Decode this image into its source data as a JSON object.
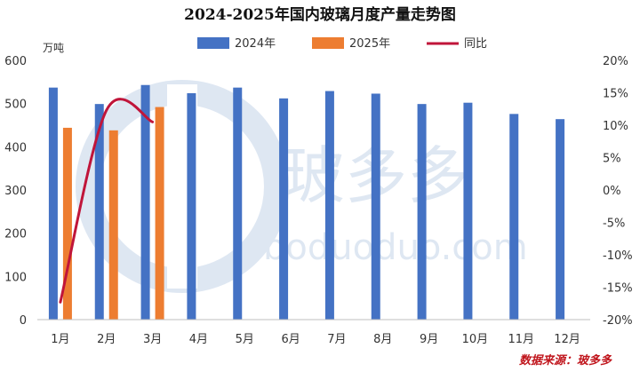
{
  "chart_data": {
    "type": "bar",
    "title": "2024-2025年国内玻璃月度产量走势图",
    "y_unit_label": "万吨",
    "categories": [
      "1月",
      "2月",
      "3月",
      "4月",
      "5月",
      "6月",
      "7月",
      "8月",
      "9月",
      "10月",
      "11月",
      "12月"
    ],
    "series": [
      {
        "name": "2024年",
        "type": "bar",
        "axis": "left",
        "color": "#4472c4",
        "values": [
          537,
          499,
          543,
          524,
          537,
          512,
          529,
          523,
          499,
          502,
          476,
          464
        ]
      },
      {
        "name": "2025年",
        "type": "bar",
        "axis": "left",
        "color": "#ed7d31",
        "values": [
          444,
          438,
          492,
          null,
          null,
          null,
          null,
          null,
          null,
          null,
          null,
          null
        ]
      },
      {
        "name": "同比",
        "type": "line",
        "axis": "right",
        "color": "#c0153a",
        "values": [
          -17.3,
          12.3,
          10.5,
          null,
          null,
          null,
          null,
          null,
          null,
          null,
          null,
          null
        ]
      }
    ],
    "ylim": [
      0,
      600
    ],
    "y_ticks": [
      0,
      100,
      200,
      300,
      400,
      500,
      600
    ],
    "y2lim": [
      -20,
      20
    ],
    "y2_ticks": [
      "-20%",
      "-15%",
      "-10%",
      "-5%",
      "0%",
      "5%",
      "10%",
      "15%",
      "20%"
    ],
    "legend_position": "top",
    "grid": false,
    "source": "数据来源：玻多多",
    "watermark": {
      "text": "玻多多",
      "sub": "boduoduo.com"
    }
  }
}
